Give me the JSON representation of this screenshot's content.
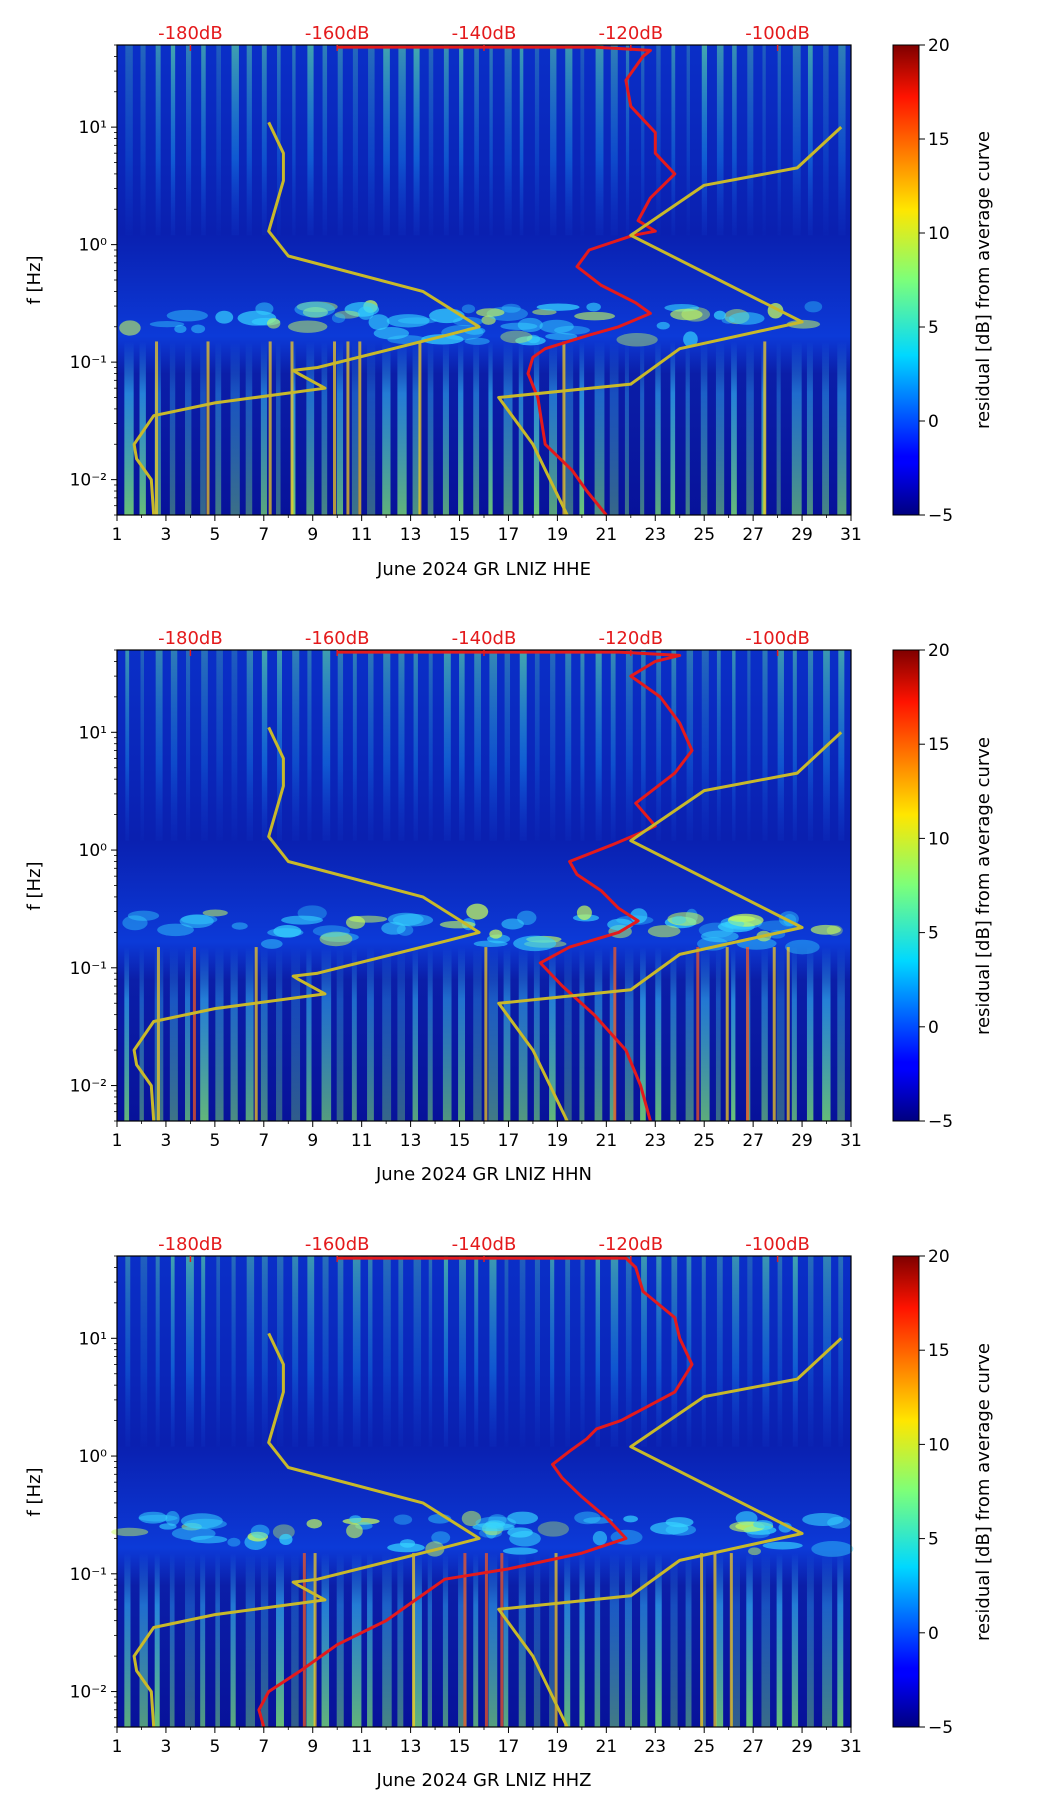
{
  "chart_data": [
    {
      "type": "heatmap",
      "channel": "HHE",
      "xlabel": "June 2024 GR LNIZ  HHE",
      "ylabel": "f [Hz]",
      "x_ticks": [
        "1",
        "3",
        "5",
        "7",
        "9",
        "11",
        "13",
        "15",
        "17",
        "19",
        "21",
        "23",
        "25",
        "27",
        "29",
        "31"
      ],
      "y_ticks": [
        "10⁻²",
        "10⁻¹",
        "10⁰",
        "10¹"
      ],
      "top_axis_ticks": [
        "-180dB",
        "-160dB",
        "-140dB",
        "-120dB",
        "-100dB"
      ],
      "xlim": [
        1,
        31
      ],
      "ylim": [
        0.005,
        50
      ],
      "y_scale": "log",
      "top_axis_dB_range": [
        -190,
        -90
      ],
      "colorbar": {
        "label": "residual [dB] from average curve",
        "range": [
          -5,
          20
        ],
        "ticks": [
          "20",
          "15",
          "10",
          "5",
          "0",
          "−5"
        ],
        "colormap": "jet"
      },
      "series": [
        {
          "color": "#e41a1c",
          "points": [
            [
              21,
              0.005
            ],
            [
              20.2,
              0.008
            ],
            [
              19.6,
              0.012
            ],
            [
              18.5,
              0.02
            ],
            [
              18.2,
              0.05
            ],
            [
              17.8,
              0.08
            ],
            [
              18,
              0.11
            ],
            [
              18.5,
              0.13
            ],
            [
              20.3,
              0.17
            ],
            [
              21.5,
              0.2
            ],
            [
              22.8,
              0.26
            ],
            [
              22.2,
              0.32
            ],
            [
              20.8,
              0.45
            ],
            [
              19.8,
              0.65
            ],
            [
              20.3,
              0.9
            ],
            [
              22.1,
              1.2
            ],
            [
              23,
              1.3
            ],
            [
              22.3,
              1.6
            ],
            [
              22.8,
              2.5
            ],
            [
              23.8,
              4
            ],
            [
              23,
              6
            ],
            [
              23,
              9
            ],
            [
              22,
              15
            ],
            [
              21.8,
              25
            ],
            [
              22.5,
              40
            ],
            [
              22.8,
              45
            ],
            [
              20.5,
              48
            ],
            [
              10,
              48
            ]
          ]
        },
        {
          "color": "#c8b92a",
          "points": [
            [
              19.4,
              0.005
            ],
            [
              18,
              0.02
            ],
            [
              16.6,
              0.05
            ],
            [
              22,
              0.065
            ],
            [
              24,
              0.13
            ],
            [
              29,
              0.22
            ],
            [
              22,
              1.2
            ],
            [
              25,
              3.2
            ],
            [
              28.8,
              4.5
            ],
            [
              30.6,
              10
            ]
          ]
        },
        {
          "color": "#c8b92a",
          "points": [
            [
              2.5,
              0.005
            ],
            [
              2.4,
              0.01
            ],
            [
              1.8,
              0.015
            ],
            [
              1.7,
              0.02
            ],
            [
              2.5,
              0.035
            ],
            [
              5,
              0.045
            ],
            [
              9.5,
              0.06
            ],
            [
              8.4,
              0.08
            ],
            [
              8.2,
              0.085
            ],
            [
              9.2,
              0.09
            ],
            [
              14.5,
              0.17
            ],
            [
              15.8,
              0.2
            ],
            [
              13.5,
              0.4
            ],
            [
              8,
              0.8
            ],
            [
              7.2,
              1.3
            ],
            [
              7.8,
              3.5
            ],
            [
              7.8,
              6
            ],
            [
              7.2,
              11
            ]
          ]
        }
      ]
    },
    {
      "type": "heatmap",
      "channel": "HHN",
      "xlabel": "June 2024 GR LNIZ  HHN",
      "ylabel": "f [Hz]",
      "x_ticks": [
        "1",
        "3",
        "5",
        "7",
        "9",
        "11",
        "13",
        "15",
        "17",
        "19",
        "21",
        "23",
        "25",
        "27",
        "29",
        "31"
      ],
      "y_ticks": [
        "10⁻²",
        "10⁻¹",
        "10⁰",
        "10¹"
      ],
      "top_axis_ticks": [
        "-180dB",
        "-160dB",
        "-140dB",
        "-120dB",
        "-100dB"
      ],
      "xlim": [
        1,
        31
      ],
      "ylim": [
        0.005,
        50
      ],
      "y_scale": "log",
      "top_axis_dB_range": [
        -190,
        -90
      ],
      "colorbar": {
        "label": "residual [dB] from average curve",
        "range": [
          -5,
          20
        ],
        "ticks": [
          "20",
          "15",
          "10",
          "5",
          "0",
          "−5"
        ],
        "colormap": "jet"
      },
      "series": [
        {
          "color": "#e41a1c",
          "points": [
            [
              22.8,
              0.005
            ],
            [
              22.4,
              0.01
            ],
            [
              21.8,
              0.02
            ],
            [
              20.5,
              0.04
            ],
            [
              19.2,
              0.07
            ],
            [
              18.3,
              0.11
            ],
            [
              19.5,
              0.15
            ],
            [
              21.5,
              0.2
            ],
            [
              22.3,
              0.25
            ],
            [
              21.5,
              0.32
            ],
            [
              20.8,
              0.45
            ],
            [
              19.8,
              0.62
            ],
            [
              19.5,
              0.8
            ],
            [
              21.2,
              1.1
            ],
            [
              22.4,
              1.4
            ],
            [
              23,
              1.6
            ],
            [
              22.2,
              2.5
            ],
            [
              23.8,
              4.5
            ],
            [
              24.5,
              7
            ],
            [
              24,
              12
            ],
            [
              23.2,
              20
            ],
            [
              22,
              30
            ],
            [
              23,
              40
            ],
            [
              24,
              45
            ],
            [
              21.5,
              48
            ],
            [
              10,
              48
            ]
          ]
        },
        {
          "color": "#c8b92a",
          "points": [
            [
              19.4,
              0.005
            ],
            [
              18,
              0.02
            ],
            [
              16.6,
              0.05
            ],
            [
              22,
              0.065
            ],
            [
              24,
              0.13
            ],
            [
              29,
              0.22
            ],
            [
              22,
              1.2
            ],
            [
              25,
              3.2
            ],
            [
              28.8,
              4.5
            ],
            [
              30.6,
              10
            ]
          ]
        },
        {
          "color": "#c8b92a",
          "points": [
            [
              2.5,
              0.005
            ],
            [
              2.4,
              0.01
            ],
            [
              1.8,
              0.015
            ],
            [
              1.7,
              0.02
            ],
            [
              2.5,
              0.035
            ],
            [
              5,
              0.045
            ],
            [
              9.5,
              0.06
            ],
            [
              8.4,
              0.08
            ],
            [
              8.2,
              0.085
            ],
            [
              9.2,
              0.09
            ],
            [
              14.5,
              0.17
            ],
            [
              15.8,
              0.2
            ],
            [
              13.5,
              0.4
            ],
            [
              8,
              0.8
            ],
            [
              7.2,
              1.3
            ],
            [
              7.8,
              3.5
            ],
            [
              7.8,
              6
            ],
            [
              7.2,
              11
            ]
          ]
        }
      ]
    },
    {
      "type": "heatmap",
      "channel": "HHZ",
      "xlabel": "June 2024 GR LNIZ  HHZ",
      "ylabel": "f [Hz]",
      "x_ticks": [
        "1",
        "3",
        "5",
        "7",
        "9",
        "11",
        "13",
        "15",
        "17",
        "19",
        "21",
        "23",
        "25",
        "27",
        "29",
        "31"
      ],
      "y_ticks": [
        "10⁻²",
        "10⁻¹",
        "10⁰",
        "10¹"
      ],
      "top_axis_ticks": [
        "-180dB",
        "-160dB",
        "-140dB",
        "-120dB",
        "-100dB"
      ],
      "xlim": [
        1,
        31
      ],
      "ylim": [
        0.005,
        50
      ],
      "y_scale": "log",
      "top_axis_dB_range": [
        -190,
        -90
      ],
      "colorbar": {
        "label": "residual [dB] from average curve",
        "range": [
          -5,
          20
        ],
        "ticks": [
          "20",
          "15",
          "10",
          "5",
          "0",
          "−5"
        ],
        "colormap": "jet"
      },
      "series": [
        {
          "color": "#e41a1c",
          "points": [
            [
              7,
              0.005
            ],
            [
              6.8,
              0.007
            ],
            [
              7.2,
              0.01
            ],
            [
              8.5,
              0.015
            ],
            [
              10,
              0.025
            ],
            [
              12,
              0.04
            ],
            [
              13.2,
              0.06
            ],
            [
              14.4,
              0.09
            ],
            [
              17,
              0.11
            ],
            [
              20,
              0.15
            ],
            [
              21.8,
              0.2
            ],
            [
              21,
              0.3
            ],
            [
              20,
              0.45
            ],
            [
              19.2,
              0.65
            ],
            [
              18.8,
              0.85
            ],
            [
              19.5,
              1.1
            ],
            [
              20.2,
              1.4
            ],
            [
              20.6,
              1.7
            ],
            [
              21.6,
              2
            ],
            [
              23.8,
              3.5
            ],
            [
              24.5,
              6
            ],
            [
              24,
              10
            ],
            [
              23.8,
              15
            ],
            [
              22.5,
              25
            ],
            [
              22.2,
              40
            ],
            [
              21.8,
              48
            ],
            [
              10,
              48
            ]
          ]
        },
        {
          "color": "#c8b92a",
          "points": [
            [
              19.4,
              0.005
            ],
            [
              18,
              0.02
            ],
            [
              16.6,
              0.05
            ],
            [
              22,
              0.065
            ],
            [
              24,
              0.13
            ],
            [
              29,
              0.22
            ],
            [
              22,
              1.2
            ],
            [
              25,
              3.2
            ],
            [
              28.8,
              4.5
            ],
            [
              30.6,
              10
            ]
          ]
        },
        {
          "color": "#c8b92a",
          "points": [
            [
              2.5,
              0.005
            ],
            [
              2.4,
              0.01
            ],
            [
              1.8,
              0.015
            ],
            [
              1.7,
              0.02
            ],
            [
              2.5,
              0.035
            ],
            [
              5,
              0.045
            ],
            [
              9.5,
              0.06
            ],
            [
              8.4,
              0.08
            ],
            [
              8.2,
              0.085
            ],
            [
              9.2,
              0.09
            ],
            [
              14.5,
              0.17
            ],
            [
              15.8,
              0.2
            ],
            [
              13.5,
              0.4
            ],
            [
              8,
              0.8
            ],
            [
              7.2,
              1.3
            ],
            [
              7.8,
              3.5
            ],
            [
              7.8,
              6
            ],
            [
              7.2,
              11
            ]
          ]
        }
      ]
    }
  ]
}
